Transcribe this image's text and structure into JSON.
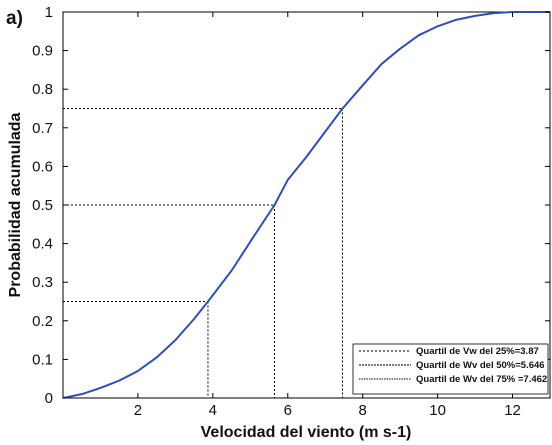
{
  "chart_data": {
    "type": "line",
    "panel_label": "a)",
    "xlabel": "Velocidad del viento (m s-1)",
    "ylabel": "Probabilidad acumulada",
    "xlim": [
      0,
      13
    ],
    "ylim": [
      0,
      1
    ],
    "x_ticks": [
      2,
      4,
      6,
      8,
      10,
      12
    ],
    "y_ticks": [
      0,
      0.1,
      0.2,
      0.3,
      0.4,
      0.5,
      0.6,
      0.7,
      0.8,
      0.9,
      1
    ],
    "grid": false,
    "line_color": "#2e4fb5",
    "series": [
      {
        "x": [
          0,
          0.5,
          1,
          1.5,
          2,
          2.5,
          3,
          3.5,
          3.87,
          4.5,
          5,
          5.646,
          6,
          6.5,
          7,
          7.462,
          8,
          8.5,
          9,
          9.5,
          10,
          10.5,
          11,
          11.5,
          12,
          12.5,
          13
        ],
        "y": [
          0,
          0.01,
          0.026,
          0.045,
          0.07,
          0.105,
          0.15,
          0.205,
          0.25,
          0.33,
          0.405,
          0.5,
          0.565,
          0.625,
          0.69,
          0.75,
          0.81,
          0.865,
          0.905,
          0.94,
          0.963,
          0.98,
          0.99,
          0.997,
          1,
          1,
          1
        ]
      }
    ],
    "quartiles": [
      {
        "label": "Quartil de Vw del 25%=3.87",
        "x": 3.87,
        "y": 0.25
      },
      {
        "label": "Quartil de Wv del 50%=5.646",
        "x": 5.646,
        "y": 0.5
      },
      {
        "label": "Quartil de Wv del 75% =7.462",
        "x": 7.462,
        "y": 0.75
      }
    ],
    "legend_position": "bottom-right"
  }
}
